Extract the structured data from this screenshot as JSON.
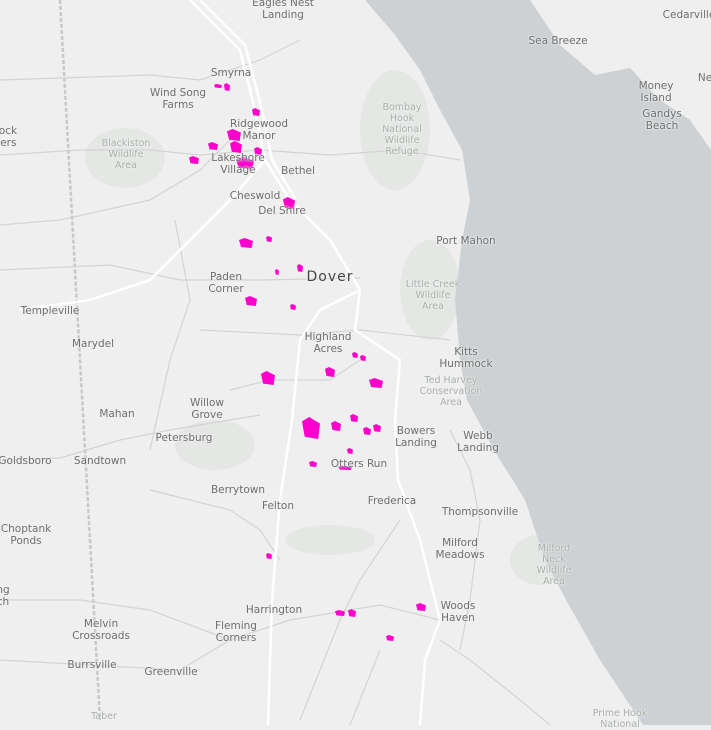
{
  "map": {
    "colors": {
      "land": "#efefef",
      "water": "#cdd1d3",
      "road": "#ffffff",
      "minor_road": "#d6d6d6",
      "parcel": "#ff00cc",
      "park": "#e6e8e6"
    },
    "places": [
      "Eagles Nest\nLanding",
      "Smyrna",
      "Wind Song\nFarms",
      "Ridgewood\nManor",
      "Lakeshore\nVillage",
      "Bethel",
      "Cheswold",
      "Del Shire",
      "Dover",
      "Paden\nCorner",
      "Templeville",
      "Marydel",
      "Highland\nAcres",
      "cock\nners",
      "Port Mahon",
      "Sea Breeze",
      "Cedarville",
      "Money\nIsland",
      "Gandys\nBeach",
      "Kitts\nHummock",
      "Mahan",
      "Willow\nGrove",
      "Petersburg",
      "Goldsboro",
      "Sandtown",
      "Bowers\nLanding",
      "Webb\nLanding",
      "Otters Run",
      "Berrytown",
      "Felton",
      "Frederica",
      "Thompsonville",
      "Choptank\nPonds",
      "Milford\nMeadows",
      "ng\nch",
      "Melvin\nCrossroads",
      "Harrington",
      "Fleming\nCorners",
      "Woods\nHaven",
      "Burrsville",
      "Greenville",
      "Ne"
    ],
    "parks": [
      "Blackiston\nWildlife\nArea",
      "Bombay\nHook\nNational\nWildlife\nRefuge",
      "Little Creek\nWildlife\nArea",
      "Ted Harvey\nConservation\nArea",
      "Milford\nNeck\nWildlife\nArea",
      "Taber",
      "Prime Hook\nNational"
    ]
  }
}
